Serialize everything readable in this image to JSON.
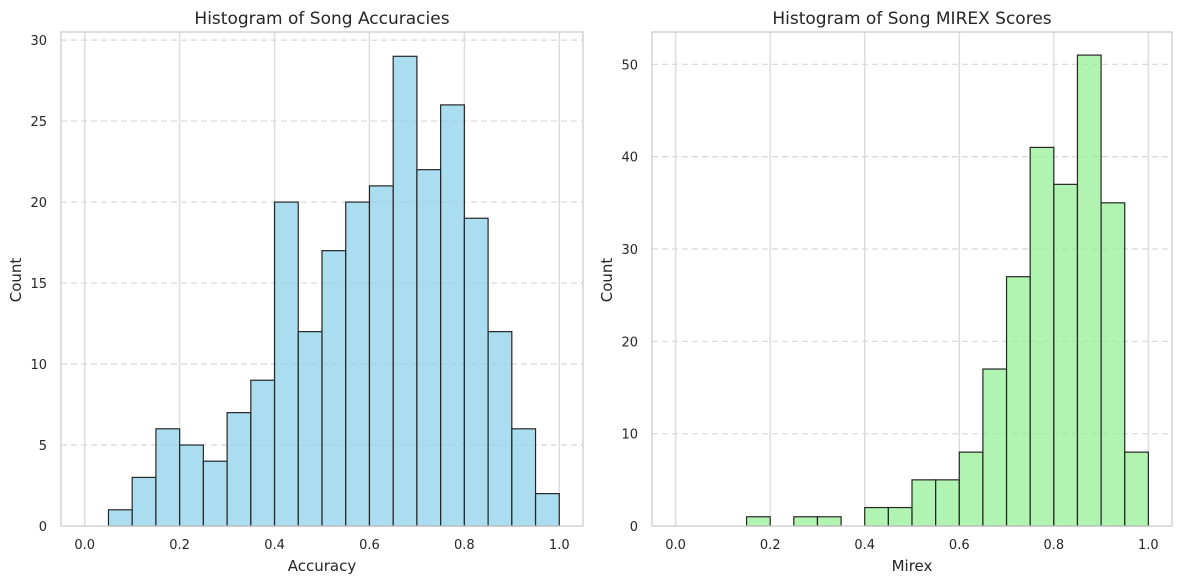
{
  "chart_data": [
    {
      "type": "bar",
      "title": "Histogram of Song Accuracies",
      "xlabel": "Accuracy",
      "ylabel": "Count",
      "xlim": [
        -0.05,
        1.05
      ],
      "ylim": [
        0,
        30.5
      ],
      "xticks": [
        "0.0",
        "0.2",
        "0.4",
        "0.6",
        "0.8",
        "1.0"
      ],
      "yticks": [
        "0",
        "5",
        "10",
        "15",
        "20",
        "25",
        "30"
      ],
      "bin_edges": [
        0.05,
        0.1,
        0.15,
        0.2,
        0.25,
        0.3,
        0.35,
        0.4,
        0.45,
        0.5,
        0.55,
        0.6,
        0.65,
        0.7,
        0.75,
        0.8,
        0.85,
        0.9,
        0.95,
        1.0
      ],
      "values": [
        1,
        3,
        6,
        5,
        4,
        7,
        9,
        20,
        12,
        17,
        20,
        21,
        29,
        22,
        26,
        19,
        12,
        6,
        2
      ],
      "bar_color": "#87ceeb",
      "edge_color": "#262626",
      "grid": "x solid, y dashed"
    },
    {
      "type": "bar",
      "title": "Histogram of Song MIREX Scores",
      "xlabel": "Mirex",
      "ylabel": "Count",
      "xlim": [
        -0.05,
        1.05
      ],
      "ylim": [
        0,
        53.5
      ],
      "xticks": [
        "0.0",
        "0.2",
        "0.4",
        "0.6",
        "0.8",
        "1.0"
      ],
      "yticks": [
        "0",
        "10",
        "20",
        "30",
        "40",
        "50"
      ],
      "bin_edges": [
        0.15,
        0.2,
        0.25,
        0.3,
        0.35,
        0.4,
        0.45,
        0.5,
        0.55,
        0.6,
        0.65,
        0.7,
        0.75,
        0.8,
        0.85,
        0.9,
        0.95,
        1.0
      ],
      "values": [
        1,
        0,
        1,
        1,
        0,
        2,
        2,
        5,
        5,
        8,
        17,
        27,
        41,
        37,
        51,
        35,
        8
      ],
      "bar_color": "#90ee90",
      "edge_color": "#262626",
      "grid": "x solid, y dashed"
    }
  ]
}
